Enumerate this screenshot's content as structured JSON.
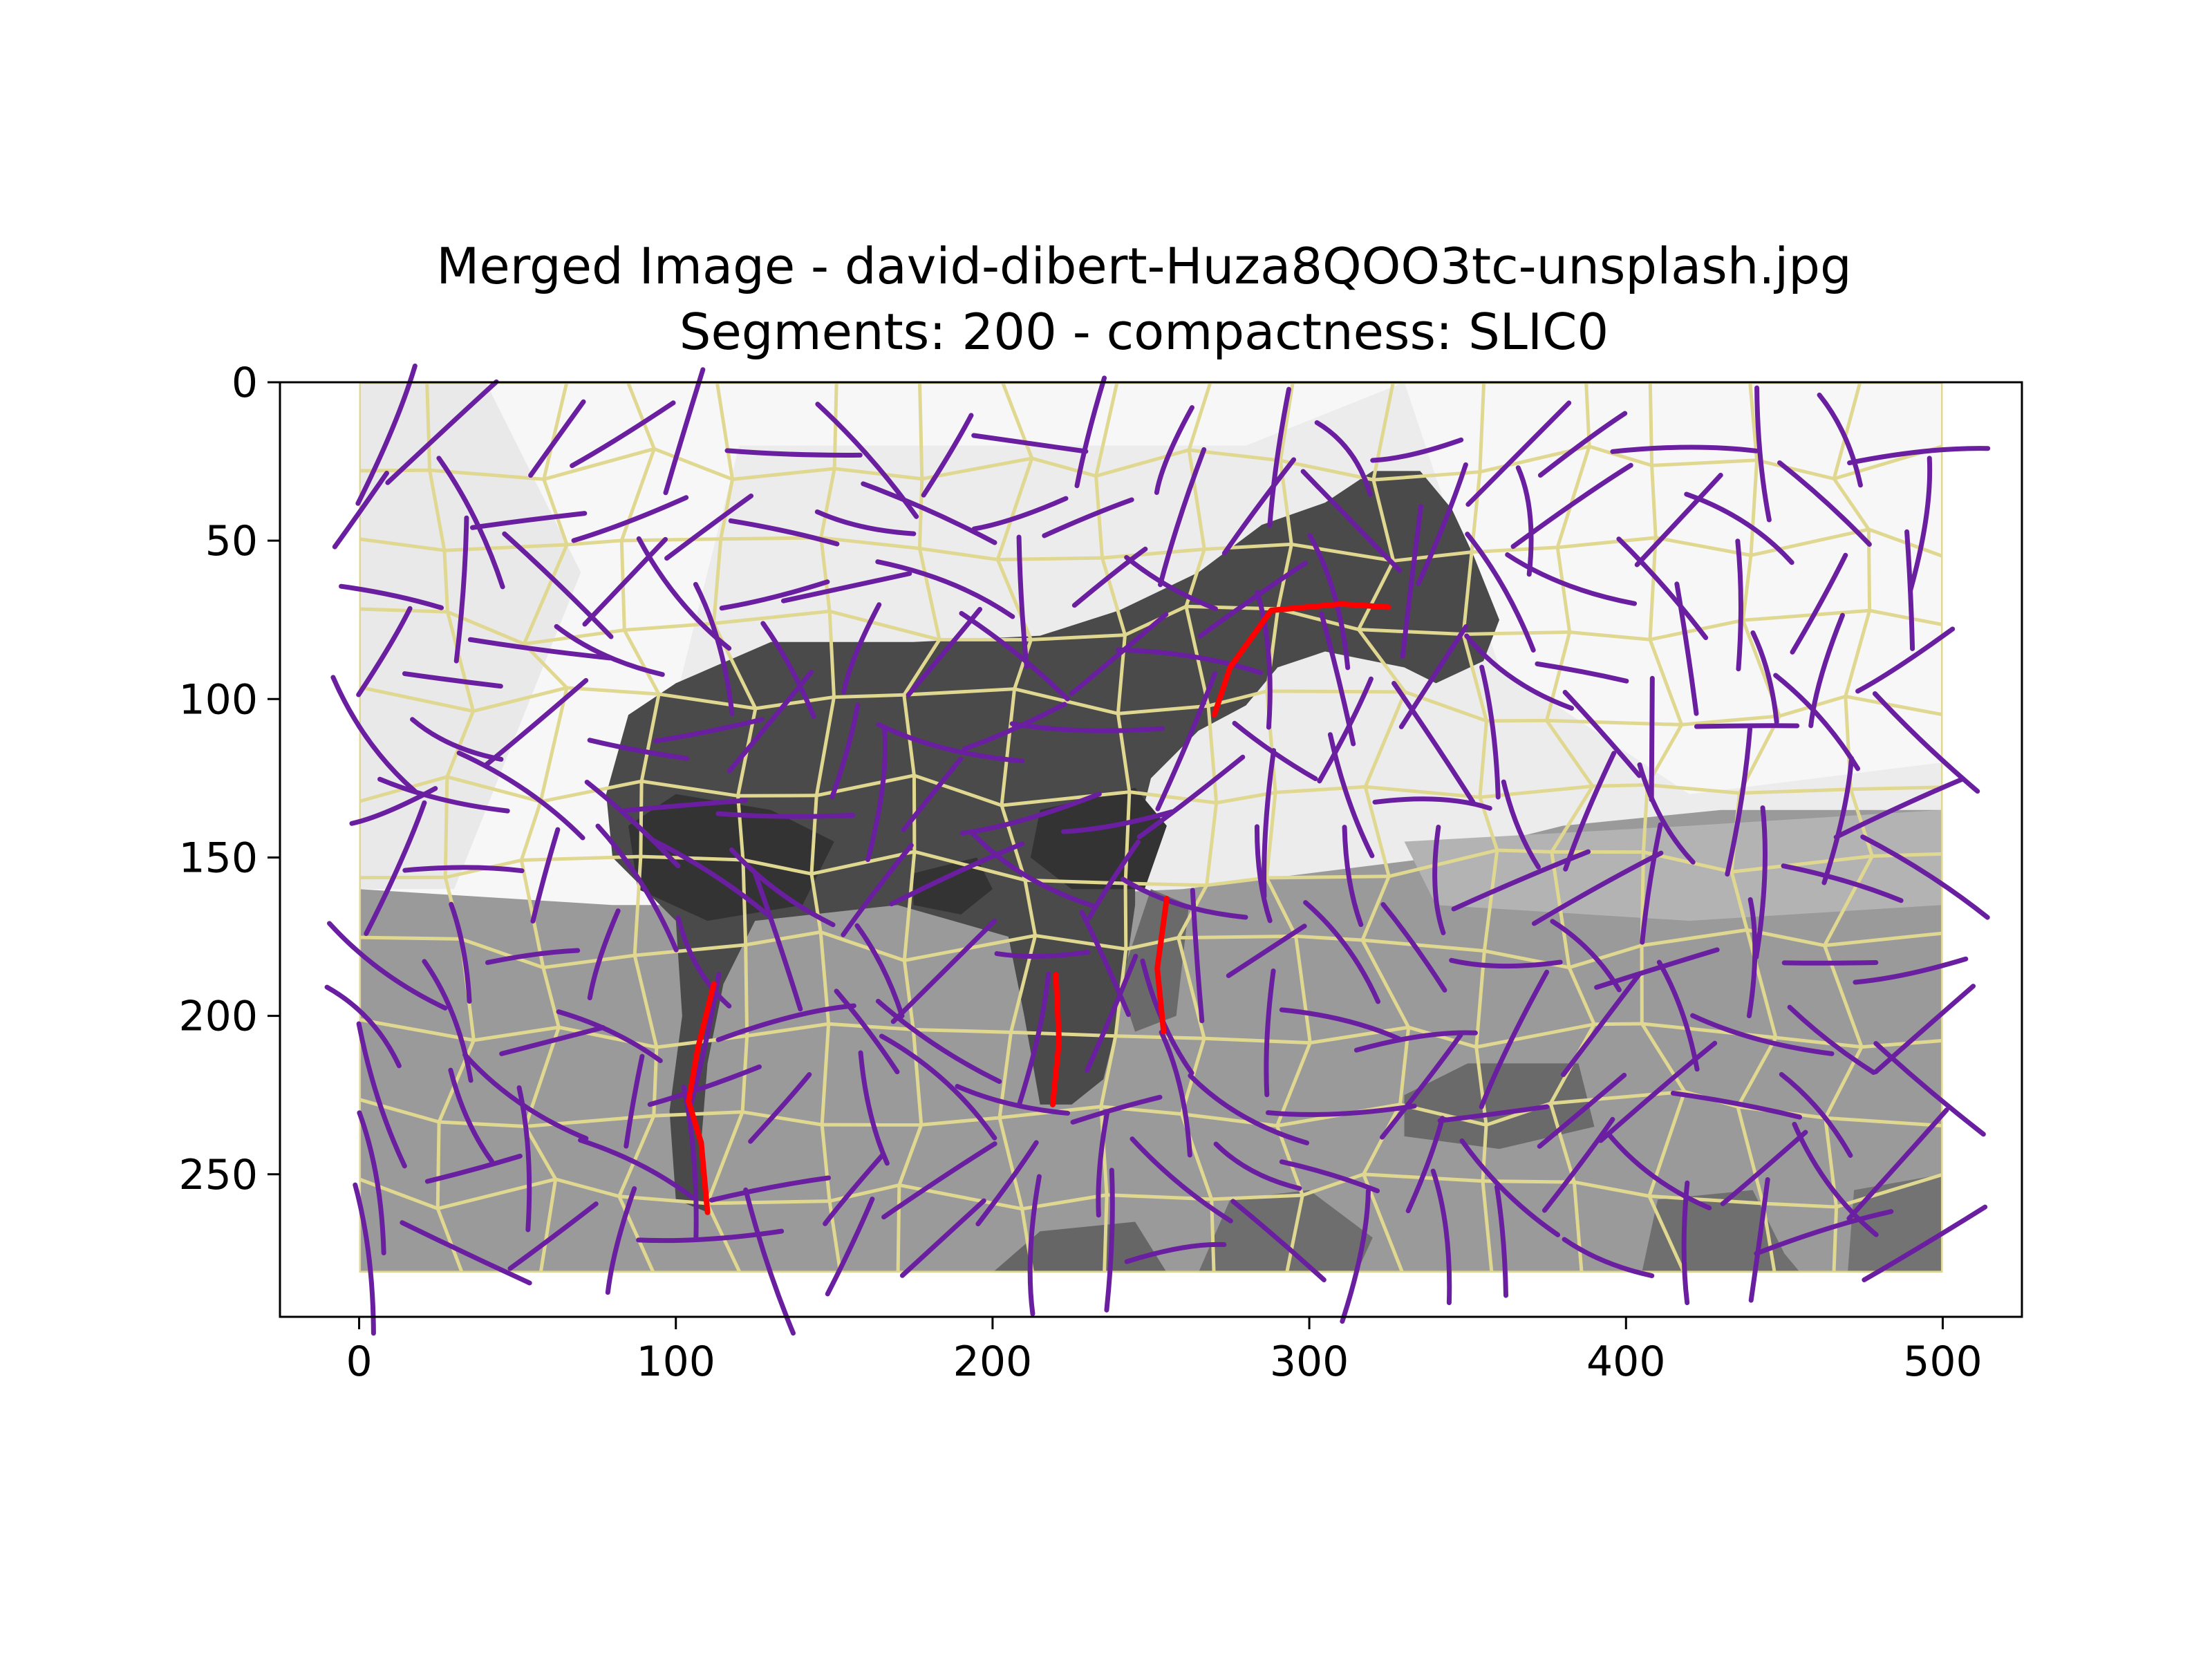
{
  "chart_data": {
    "type": "image",
    "title": "Merged Image - david-dibert-Huza8QOO3tc-unsplash.jpg",
    "subtitle": "Segments: 200 - compactness: SLIC0",
    "xlim": [
      -25,
      525
    ],
    "ylim": [
      295,
      0
    ],
    "xticks": [
      0,
      100,
      200,
      300,
      400,
      500
    ],
    "yticks": [
      0,
      50,
      100,
      150,
      200,
      250
    ],
    "image_extent": {
      "x": [
        0,
        500
      ],
      "y": [
        0,
        281
      ]
    },
    "colors": {
      "sky_light": "#f7f7f7",
      "sky_mid": "#ececec",
      "ground": "#9a9a9a",
      "ground_dark": "#727272",
      "animal": "#4a4a4a",
      "animal_dark": "#333333",
      "boundary": "#e0d890",
      "flow_line": "#6a1fa0",
      "highlight_line": "#ff0000"
    },
    "highlight_lines": [
      [
        [
          270,
          105
        ],
        [
          275,
          90
        ],
        [
          288,
          72
        ],
        [
          310,
          70
        ],
        [
          325,
          71
        ]
      ],
      [
        [
          112,
          190
        ],
        [
          107,
          210
        ],
        [
          104,
          227
        ],
        [
          108,
          240
        ],
        [
          110,
          262
        ]
      ],
      [
        [
          220,
          187
        ],
        [
          221,
          208
        ],
        [
          219,
          228
        ]
      ],
      [
        [
          255,
          163
        ],
        [
          252,
          185
        ],
        [
          254,
          205
        ]
      ]
    ]
  }
}
